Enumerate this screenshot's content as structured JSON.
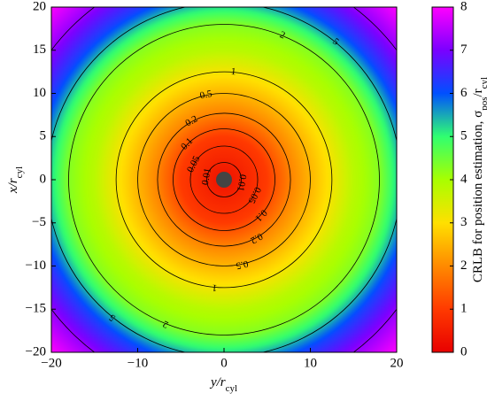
{
  "chart_data": {
    "type": "radial_contour",
    "xlabel": [
      {
        "text": "y/r"
      },
      {
        "text": "cyl",
        "sub": true
      }
    ],
    "ylabel": [
      {
        "text": "x/r"
      },
      {
        "text": "cyl",
        "sub": true
      }
    ],
    "xlim": [
      -20,
      20
    ],
    "xticks": [
      {
        "value": -20,
        "label": "−20"
      },
      {
        "value": -10,
        "label": "−10"
      },
      0,
      10,
      20
    ],
    "ylim": [
      -20,
      20
    ],
    "yticks": [
      {
        "value": -20,
        "label": "−20"
      },
      {
        "value": -15,
        "label": "−15"
      },
      {
        "value": -10,
        "label": "−10"
      },
      {
        "value": -5,
        "label": "−5"
      },
      0,
      5,
      10,
      15,
      20
    ],
    "field": {
      "r": [
        0,
        5,
        8,
        12,
        15,
        18,
        20,
        22,
        25,
        28.3
      ],
      "values": [
        0.3,
        1,
        2,
        3,
        3.8,
        4.3,
        5.2,
        6.2,
        7.2,
        8
      ]
    },
    "contours": {
      "levels": [
        0.01,
        0.05,
        0.1,
        0.2,
        0.5,
        1,
        2,
        5,
        10
      ],
      "r": [
        2.0,
        3.9,
        5.9,
        7.7,
        10,
        12.5,
        18,
        20.5,
        25
      ]
    },
    "colorbar": {
      "label": [
        {
          "text": "CRLB for position estimation, σ"
        },
        {
          "text": "pos",
          "sub": true
        },
        {
          "text": "/r"
        },
        {
          "text": "cyl",
          "sub": true
        }
      ],
      "lim": [
        0,
        8
      ],
      "ticks": [
        0,
        1,
        2,
        3,
        4,
        5,
        6,
        7,
        8
      ],
      "colors": [
        "#e80000",
        "#ff3a00",
        "#ff8a00",
        "#ffe000",
        "#a8ff00",
        "#30ff70",
        "#0050ff",
        "#7a00ff",
        "#ff00ff"
      ]
    }
  }
}
